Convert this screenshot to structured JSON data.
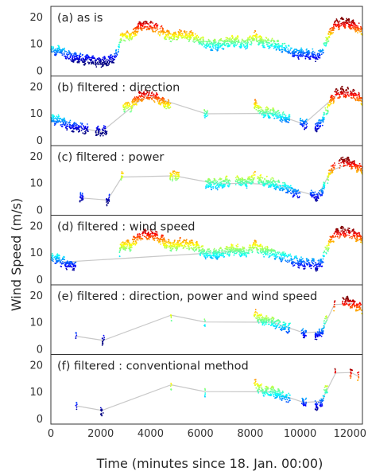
{
  "chart_data": {
    "type": "scatter",
    "xlabel": "Time (minutes since 18. Jan. 00:00)",
    "ylabel": "Wind Speed (m/s)",
    "xlim": [
      0,
      12500
    ],
    "ylim": [
      -2,
      24
    ],
    "x_ticks": [
      0,
      2000,
      4000,
      6000,
      8000,
      10000,
      12000
    ],
    "y_ticks": [
      0,
      10,
      20
    ],
    "colormap": "jet",
    "connector_color": "#c8c8c8",
    "panels": [
      {
        "title": "(a) as is",
        "segments": [
          [
            0,
            12500
          ]
        ],
        "connect": false
      },
      {
        "title": "(b) filtered : direction",
        "segments": [
          [
            0,
            1500
          ],
          [
            1800,
            2250
          ],
          [
            2900,
            4800
          ],
          [
            6150,
            6300
          ],
          [
            8150,
            9600
          ],
          [
            10000,
            10300
          ],
          [
            10600,
            12500
          ]
        ],
        "connect": true
      },
      {
        "title": "(c) filtered : power",
        "segments": [
          [
            1150,
            1300
          ],
          [
            2200,
            2350
          ],
          [
            2800,
            2900
          ],
          [
            4780,
            5150
          ],
          [
            6200,
            7200
          ],
          [
            7400,
            8200
          ],
          [
            8300,
            10000
          ],
          [
            10400,
            11000
          ],
          [
            11100,
            11400
          ],
          [
            11550,
            12500
          ]
        ],
        "connect": true
      },
      {
        "title": "(d) filtered : wind speed",
        "segments": [
          [
            0,
            1000
          ],
          [
            2750,
            12500
          ]
        ],
        "connect": true
      },
      {
        "title": "(e) filtered : direction, power and wind speed",
        "segments": [
          [
            1000,
            1050
          ],
          [
            2050,
            2150
          ],
          [
            4800,
            4850
          ],
          [
            6150,
            6200
          ],
          [
            8150,
            9600
          ],
          [
            10050,
            10250
          ],
          [
            10600,
            11100
          ],
          [
            11350,
            11400
          ],
          [
            11700,
            12500
          ]
        ],
        "connect": true
      },
      {
        "title": "(f) filtered : conventional method",
        "segments": [
          [
            1000,
            1050
          ],
          [
            2000,
            2100
          ],
          [
            4800,
            4850
          ],
          [
            6150,
            6200
          ],
          [
            8150,
            9600
          ],
          [
            10050,
            10250
          ],
          [
            10600,
            11100
          ],
          [
            11400,
            11450
          ],
          [
            12000,
            12100
          ],
          [
            12300,
            12350
          ]
        ],
        "connect": true
      }
    ],
    "wind_speed_profile": [
      [
        0,
        8
      ],
      [
        300,
        7.5
      ],
      [
        600,
        6
      ],
      [
        900,
        5
      ],
      [
        1200,
        4.5
      ],
      [
        1500,
        4
      ],
      [
        1800,
        3.5
      ],
      [
        2000,
        3
      ],
      [
        2200,
        3.5
      ],
      [
        2400,
        4
      ],
      [
        2600,
        5
      ],
      [
        2700,
        8
      ],
      [
        2800,
        12
      ],
      [
        3000,
        13
      ],
      [
        3200,
        12.5
      ],
      [
        3500,
        16
      ],
      [
        3800,
        17
      ],
      [
        4100,
        16.5
      ],
      [
        4400,
        15
      ],
      [
        4700,
        13
      ],
      [
        4900,
        12.5
      ],
      [
        5200,
        13.5
      ],
      [
        5500,
        13
      ],
      [
        5800,
        12.5
      ],
      [
        6100,
        10.5
      ],
      [
        6300,
        9.5
      ],
      [
        6600,
        9.5
      ],
      [
        6900,
        10
      ],
      [
        7200,
        11
      ],
      [
        7500,
        11
      ],
      [
        7800,
        10
      ],
      [
        8000,
        11
      ],
      [
        8200,
        13
      ],
      [
        8400,
        11
      ],
      [
        8600,
        10.5
      ],
      [
        8900,
        10
      ],
      [
        9200,
        9
      ],
      [
        9500,
        8
      ],
      [
        9700,
        7
      ],
      [
        9900,
        6.5
      ],
      [
        10200,
        6
      ],
      [
        10500,
        6
      ],
      [
        10700,
        5
      ],
      [
        10900,
        7
      ],
      [
        11000,
        10
      ],
      [
        11200,
        14
      ],
      [
        11400,
        17
      ],
      [
        11700,
        18
      ],
      [
        12000,
        17.5
      ],
      [
        12300,
        16
      ],
      [
        12500,
        15
      ]
    ]
  }
}
